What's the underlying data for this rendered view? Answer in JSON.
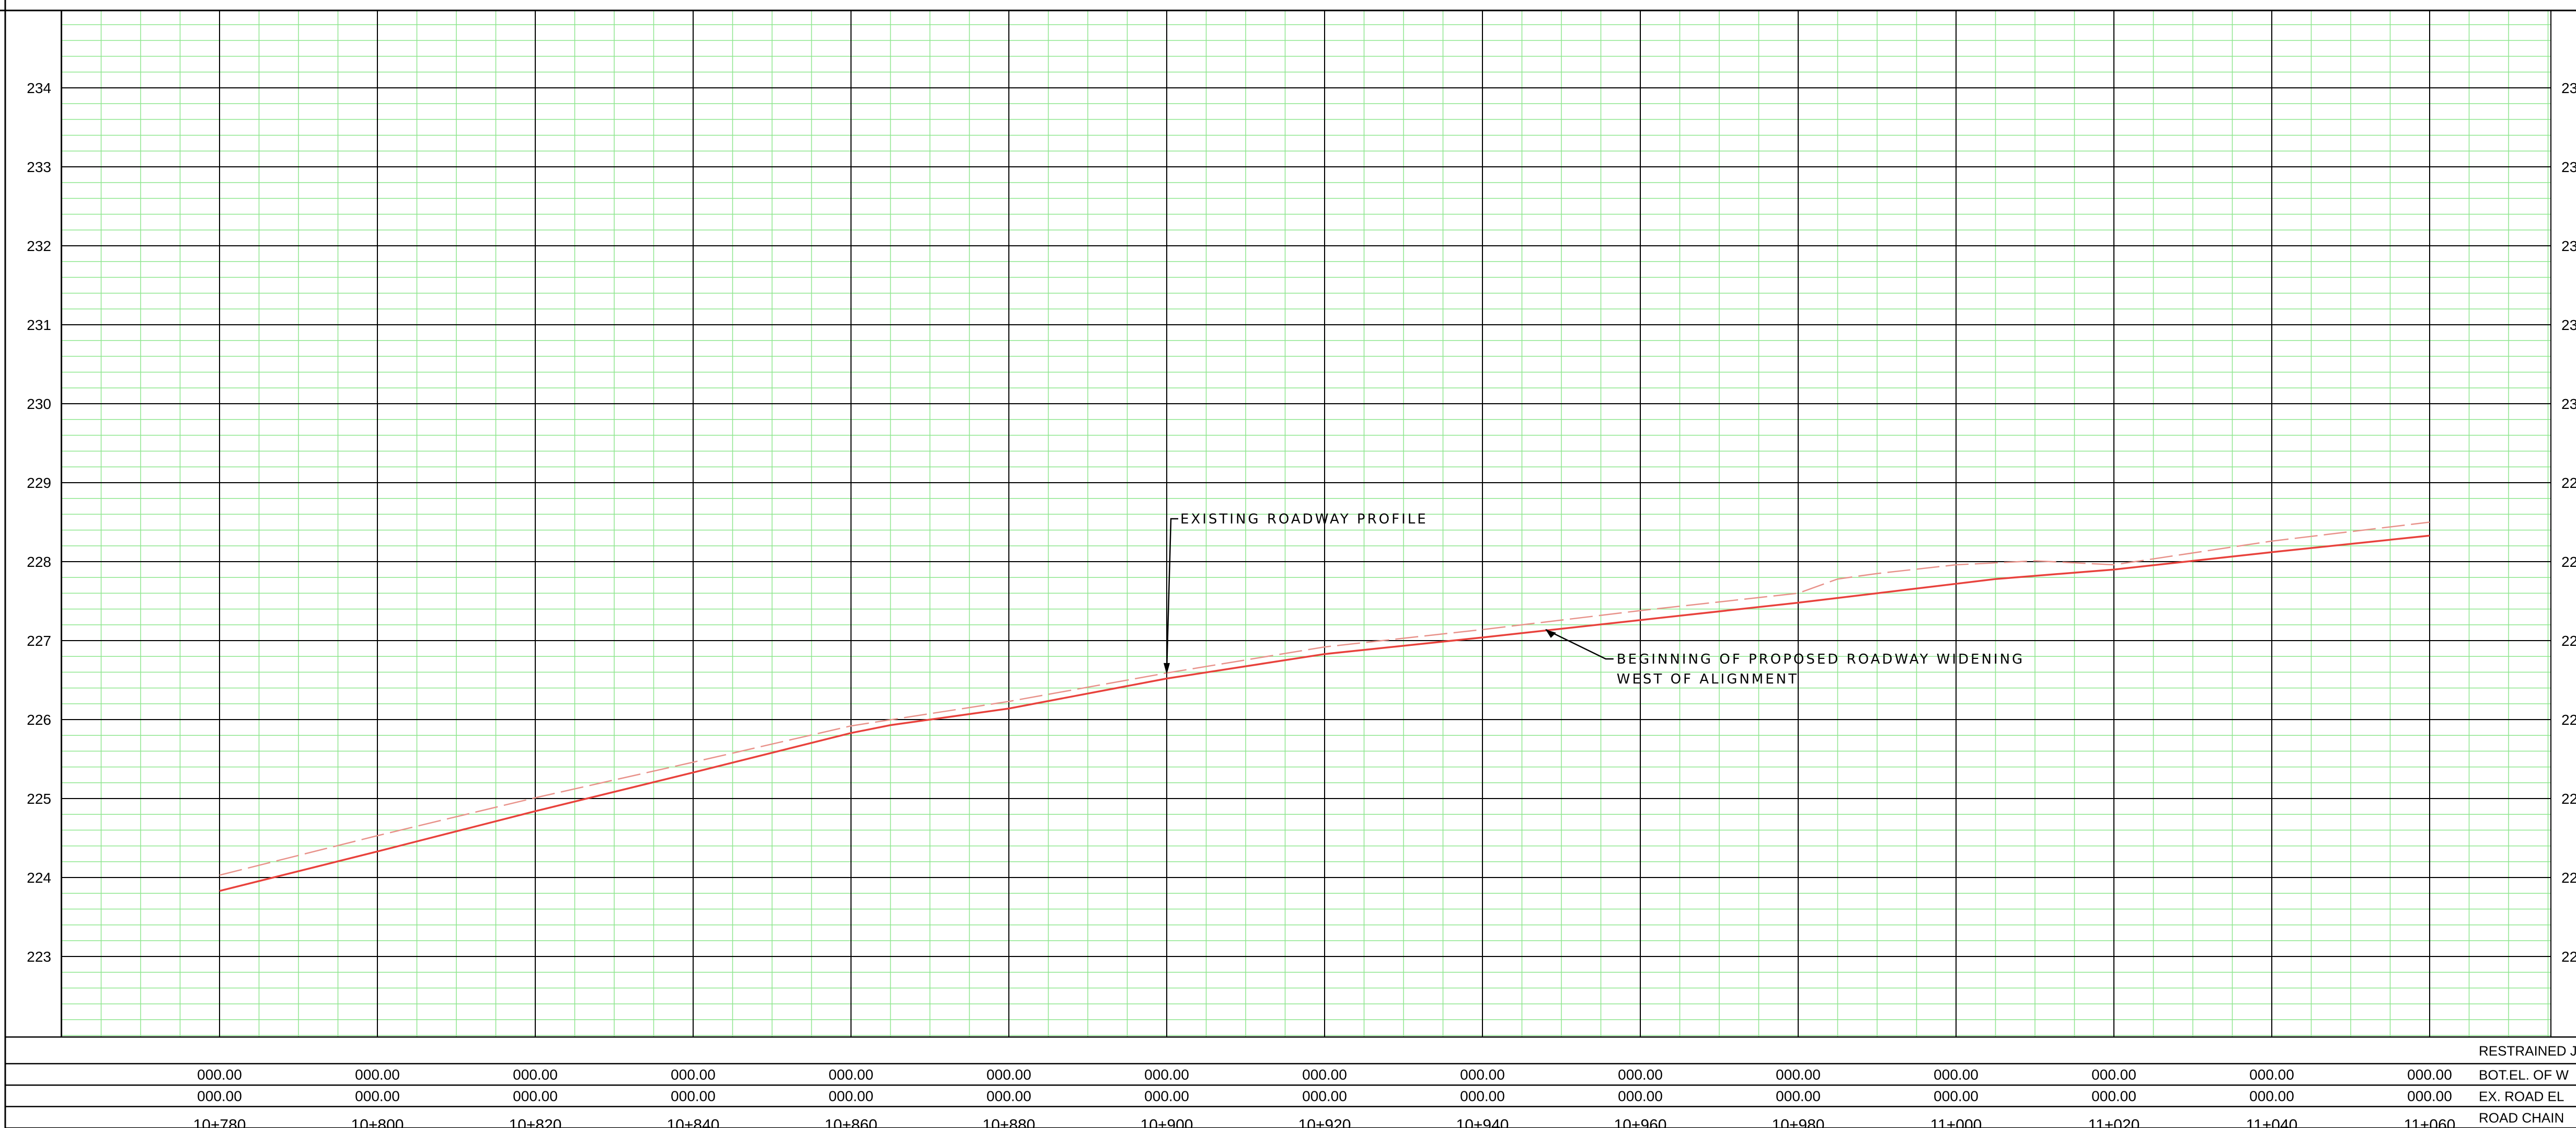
{
  "chart_data": {
    "type": "line",
    "title": "",
    "xlabel": "",
    "ylabel": "",
    "ylim": [
      222,
      235
    ],
    "xlim": [
      10760,
      11080
    ],
    "grid": true,
    "y_ticks": [
      234,
      233,
      232,
      231,
      230,
      229,
      228,
      227,
      226,
      225,
      224,
      223
    ],
    "x_stations": [
      10780,
      10800,
      10820,
      10840,
      10860,
      10880,
      10900,
      10920,
      10940,
      10960,
      10980,
      11000,
      11020,
      11040,
      11060
    ],
    "series": [
      {
        "color": "#e8423c",
        "style": "solid",
        "points": [
          [
            10780,
            223.83
          ],
          [
            10800,
            224.33
          ],
          [
            10820,
            224.84
          ],
          [
            10840,
            225.33
          ],
          [
            10860,
            225.83
          ],
          [
            10865,
            225.93
          ],
          [
            10880,
            226.14
          ],
          [
            10900,
            226.52
          ],
          [
            10920,
            226.83
          ],
          [
            10940,
            227.04
          ],
          [
            10960,
            227.26
          ],
          [
            10980,
            227.48
          ],
          [
            11000,
            227.72
          ],
          [
            11005,
            227.78
          ],
          [
            11015,
            227.86
          ],
          [
            11020,
            227.9
          ],
          [
            11040,
            228.12
          ],
          [
            11060,
            228.33
          ]
        ]
      },
      {
        "color": "#e8928a",
        "style": "dashed",
        "points": [
          [
            10780,
            224.03
          ],
          [
            10800,
            224.53
          ],
          [
            10820,
            225.01
          ],
          [
            10840,
            225.46
          ],
          [
            10860,
            225.92
          ],
          [
            10880,
            226.23
          ],
          [
            10900,
            226.59
          ],
          [
            10920,
            226.92
          ],
          [
            10940,
            227.14
          ],
          [
            10960,
            227.38
          ],
          [
            10980,
            227.6
          ],
          [
            10985,
            227.78
          ],
          [
            10990,
            227.85
          ],
          [
            11000,
            227.96
          ],
          [
            11010,
            228.01
          ],
          [
            11020,
            227.96
          ],
          [
            11040,
            228.26
          ],
          [
            11060,
            228.5
          ]
        ]
      }
    ],
    "annotations": [
      {
        "text": "EXISTING ROADWAY PROFILE",
        "x": 10900,
        "y": 226.57
      },
      {
        "text": "BEGINNING OF PROPOSED ROADWAY WIDENING",
        "line2": "WEST OF ALIGNMENT",
        "x": 10948,
        "y": 227.14
      }
    ]
  },
  "table": {
    "rows": [
      {
        "label": "RESTRAINED JOI",
        "values": []
      },
      {
        "label": "BOT.EL. OF W",
        "values": [
          "000.00",
          "000.00",
          "000.00",
          "000.00",
          "000.00",
          "000.00",
          "000.00",
          "000.00",
          "000.00",
          "000.00",
          "000.00",
          "000.00",
          "000.00",
          "000.00",
          "000.00"
        ]
      },
      {
        "label": "EX. ROAD EL",
        "values": [
          "000.00",
          "000.00",
          "000.00",
          "000.00",
          "000.00",
          "000.00",
          "000.00",
          "000.00",
          "000.00",
          "000.00",
          "000.00",
          "000.00",
          "000.00",
          "000.00",
          "000.00"
        ]
      },
      {
        "label": "ROAD CHAIN",
        "values": [
          "10+780",
          "10+800",
          "10+820",
          "10+840",
          "10+860",
          "10+880",
          "10+900",
          "10+920",
          "10+940",
          "10+960",
          "10+980",
          "11+000",
          "11+020",
          "11+040",
          "11+060"
        ]
      }
    ]
  },
  "right_margin_labels": [
    "23",
    "23",
    "23",
    "23",
    "23",
    "22",
    "22",
    "22",
    "22",
    "22",
    "22",
    "22"
  ],
  "colors": {
    "major_grid": "#000000",
    "minor_grid": "#8ee68e",
    "background": "#ffffff"
  }
}
